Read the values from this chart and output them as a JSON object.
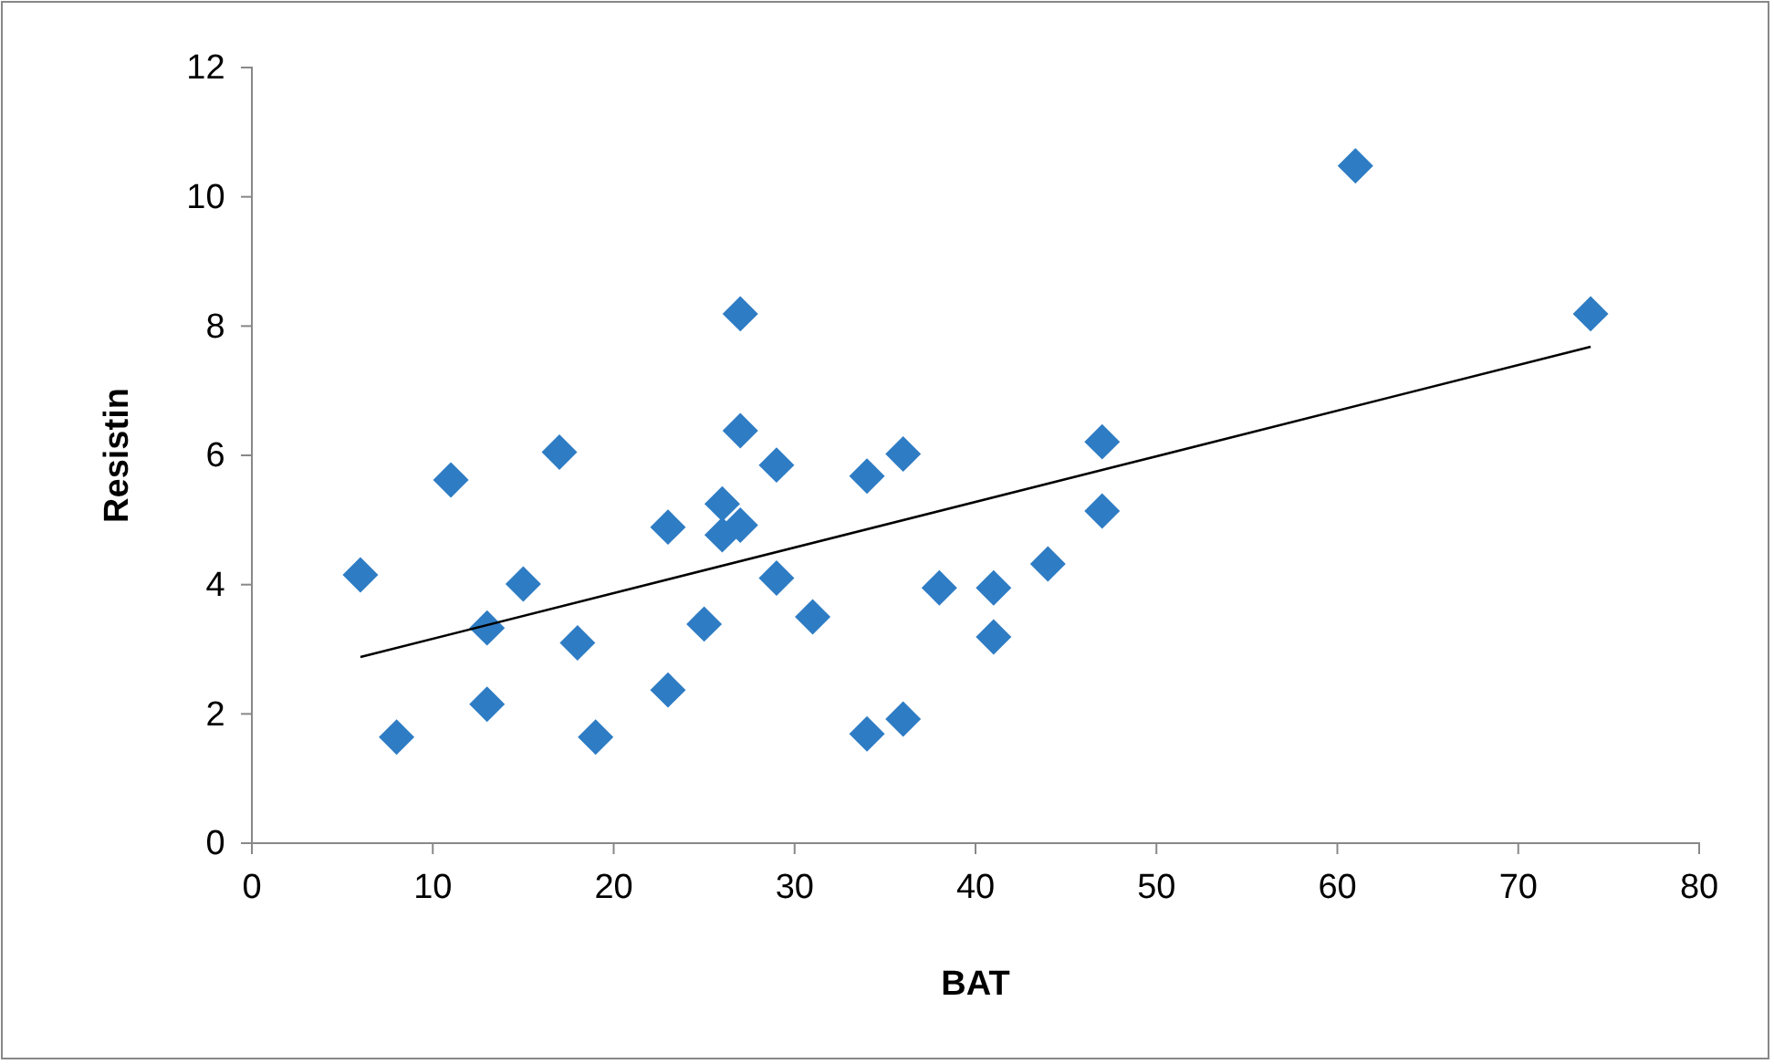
{
  "chart_data": {
    "type": "scatter",
    "xlabel": "BAT",
    "ylabel": "Resistin",
    "xlim": [
      0,
      80
    ],
    "xticks": [
      0,
      10,
      20,
      30,
      40,
      50,
      60,
      70,
      80
    ],
    "ylim": [
      0,
      12
    ],
    "yticks": [
      0,
      2,
      4,
      6,
      8,
      10,
      12
    ],
    "grid": false,
    "marker": "diamond",
    "series": [
      {
        "color": "#2e7cc4",
        "x": [
          6,
          8,
          11,
          13,
          13,
          15,
          17,
          18,
          19,
          23,
          23,
          25,
          26,
          26,
          27,
          27,
          27,
          29,
          29,
          31,
          34,
          34,
          36,
          36,
          38,
          41,
          41,
          44,
          47,
          47,
          61,
          74
        ],
        "values": [
          4.15,
          1.64,
          5.62,
          3.33,
          2.15,
          4.01,
          6.05,
          3.1,
          1.64,
          4.89,
          2.37,
          3.39,
          5.25,
          4.77,
          8.19,
          6.38,
          4.92,
          5.85,
          4.1,
          3.5,
          5.68,
          1.69,
          6.02,
          1.92,
          3.95,
          3.95,
          3.19,
          4.32,
          6.21,
          5.14,
          10.48,
          8.19
        ]
      },
      {
        "type": "line",
        "color": "#000000",
        "marker": "none",
        "line_style": "solid",
        "x": [
          6,
          74
        ],
        "values": [
          2.88,
          7.68
        ]
      }
    ]
  }
}
